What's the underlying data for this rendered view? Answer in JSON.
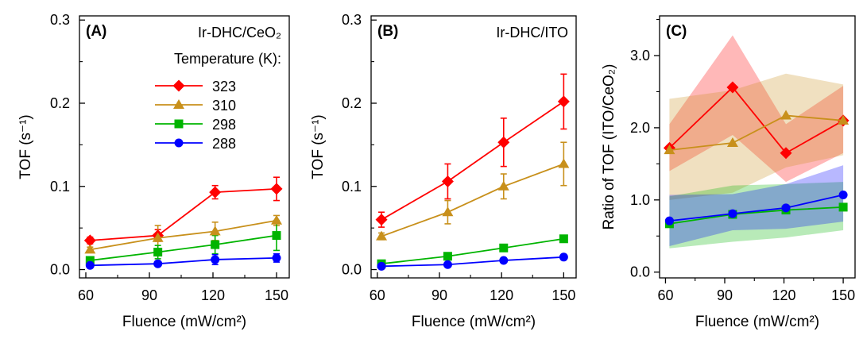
{
  "chart_data": [
    {
      "type": "line",
      "panel_label": "(A)",
      "annotation": "Ir-DHC/CeO₂",
      "xlabel": "Fluence (mW/cm²)",
      "ylabel": "TOF (s⁻¹)",
      "xlim": [
        57,
        156
      ],
      "ylim": [
        -0.01,
        0.305
      ],
      "xticks": [
        60,
        90,
        120,
        150
      ],
      "xtick_labels": [
        "60",
        "90",
        "120",
        "150"
      ],
      "yticks": [
        0.0,
        0.1,
        0.2,
        0.3
      ],
      "ytick_labels": [
        "0.0",
        "0.1",
        "0.2",
        "0.3"
      ],
      "legend_title": "Temperature (K):",
      "legend_position": "top-right",
      "x": [
        62,
        94,
        121,
        150
      ],
      "series": [
        {
          "name": "323",
          "color": "#ff0000",
          "marker": "diamond",
          "values": [
            0.035,
            0.041,
            0.093,
            0.097
          ],
          "errors": [
            0.004,
            0.007,
            0.008,
            0.014
          ]
        },
        {
          "name": "310",
          "color": "#c8901b",
          "marker": "triangle",
          "values": [
            0.024,
            0.038,
            0.046,
            0.059
          ],
          "errors": [
            0.003,
            0.015,
            0.011,
            0.006
          ]
        },
        {
          "name": "298",
          "color": "#00b400",
          "marker": "square",
          "values": [
            0.011,
            0.021,
            0.03,
            0.041
          ],
          "errors": [
            0.003,
            0.008,
            0.011,
            0.018
          ]
        },
        {
          "name": "288",
          "color": "#0000ff",
          "marker": "circle",
          "values": [
            0.005,
            0.007,
            0.012,
            0.014
          ],
          "errors": [
            0.001,
            0.002,
            0.006,
            0.005
          ]
        }
      ]
    },
    {
      "type": "line",
      "panel_label": "(B)",
      "annotation": "Ir-DHC/ITO",
      "xlabel": "Fluence (mW/cm²)",
      "ylabel": "TOF (s⁻¹)",
      "xlim": [
        57,
        156
      ],
      "ylim": [
        -0.01,
        0.305
      ],
      "xticks": [
        60,
        90,
        120,
        150
      ],
      "xtick_labels": [
        "60",
        "90",
        "120",
        "150"
      ],
      "yticks": [
        0.0,
        0.1,
        0.2,
        0.3
      ],
      "ytick_labels": [
        "0.0",
        "0.1",
        "0.2",
        "0.3"
      ],
      "x": [
        62,
        94,
        121,
        150
      ],
      "series": [
        {
          "name": "323",
          "color": "#ff0000",
          "marker": "diamond",
          "values": [
            0.06,
            0.106,
            0.153,
            0.202
          ],
          "errors": [
            0.009,
            0.021,
            0.029,
            0.033
          ]
        },
        {
          "name": "310",
          "color": "#c8901b",
          "marker": "triangle",
          "values": [
            0.04,
            0.069,
            0.1,
            0.127
          ],
          "errors": [
            0.004,
            0.014,
            0.015,
            0.026
          ]
        },
        {
          "name": "298",
          "color": "#00b400",
          "marker": "square",
          "values": [
            0.007,
            0.016,
            0.026,
            0.037
          ],
          "errors": [
            0.001,
            0.002,
            0.002,
            0.003
          ]
        },
        {
          "name": "288",
          "color": "#0000ff",
          "marker": "circle",
          "values": [
            0.004,
            0.006,
            0.011,
            0.015
          ],
          "errors": [
            0.001,
            0.001,
            0.001,
            0.001
          ]
        }
      ]
    },
    {
      "type": "line",
      "panel_label": "(C)",
      "xlabel": "Fluence (mW/cm²)",
      "ylabel": "Ratio of TOF (ITO/CeO₂)",
      "xlim": [
        57,
        156
      ],
      "ylim": [
        -0.08,
        3.55
      ],
      "xticks": [
        60,
        90,
        120,
        150
      ],
      "xtick_labels": [
        "60",
        "90",
        "120",
        "150"
      ],
      "yticks": [
        0.0,
        1.0,
        2.0,
        3.0
      ],
      "ytick_labels": [
        "0.0",
        "1.0",
        "2.0",
        "3.0"
      ],
      "x": [
        62,
        94,
        121,
        150
      ],
      "series": [
        {
          "name": "323",
          "color": "#ff0000",
          "marker": "diamond",
          "values": [
            1.72,
            2.56,
            1.65,
            2.1
          ],
          "band_low": [
            1.4,
            1.9,
            1.25,
            1.65
          ],
          "band_high": [
            2.05,
            3.28,
            2.05,
            2.58
          ]
        },
        {
          "name": "310",
          "color": "#c8901b",
          "marker": "triangle",
          "values": [
            1.69,
            1.79,
            2.17,
            2.1
          ],
          "band_low": [
            1.0,
            1.1,
            1.45,
            1.62
          ],
          "band_high": [
            2.4,
            2.52,
            2.75,
            2.6
          ]
        },
        {
          "name": "298",
          "color": "#00b400",
          "marker": "square",
          "values": [
            0.67,
            0.8,
            0.86,
            0.9
          ],
          "band_low": [
            0.33,
            0.42,
            0.48,
            0.58
          ],
          "band_high": [
            1.05,
            1.2,
            1.22,
            1.25
          ]
        },
        {
          "name": "288",
          "color": "#0000ff",
          "marker": "circle",
          "values": [
            0.71,
            0.81,
            0.89,
            1.07
          ],
          "band_low": [
            0.36,
            0.58,
            0.6,
            0.7
          ],
          "band_high": [
            1.07,
            1.08,
            1.22,
            1.48
          ]
        }
      ]
    }
  ]
}
